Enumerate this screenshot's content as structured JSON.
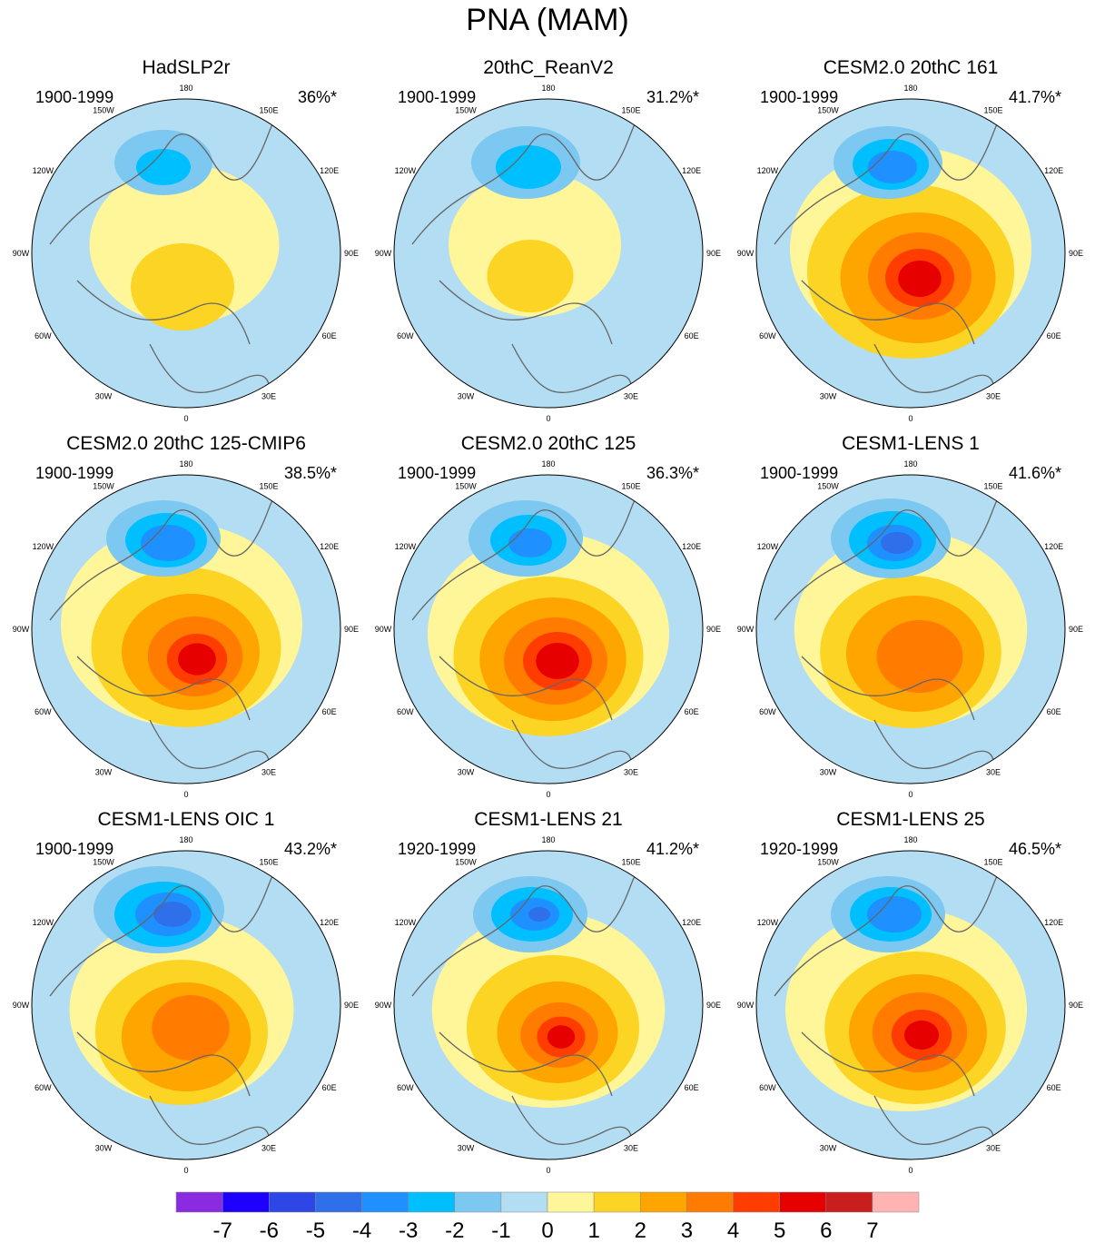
{
  "title": "PNA (MAM)",
  "panels": [
    {
      "title": "HadSLP2r",
      "period": "1900-1999",
      "pct": "36%*",
      "pos": [
        {
          "x": -2,
          "y": -55,
          "s": 1.1
        },
        {
          "x": -4,
          "y": -8,
          "s": 0.6
        }
      ],
      "neg": [
        {
          "x": -25,
          "y": -100,
          "s": 0.9
        },
        {
          "x": -25,
          "y": -95,
          "s": 0.5
        }
      ]
    },
    {
      "title": "20thC_ReanV2",
      "period": "1900-1999",
      "pct": "31.2%*",
      "pos": [
        {
          "x": -15,
          "y": -55,
          "s": 1.0
        },
        {
          "x": -20,
          "y": -20,
          "s": 0.5
        }
      ],
      "neg": [
        {
          "x": -25,
          "y": -100,
          "s": 1.0
        },
        {
          "x": -22,
          "y": -95,
          "s": 0.6
        }
      ]
    },
    {
      "title": "CESM2.0 20thC 161",
      "period": "1900-1999",
      "pct": "41.7%*",
      "pos": [
        {
          "x": 0,
          "y": -50,
          "s": 1.4
        },
        {
          "x": 0,
          "y": -25,
          "s": 1.2
        },
        {
          "x": 8,
          "y": -18,
          "s": 0.9
        },
        {
          "x": 10,
          "y": -20,
          "s": 0.6
        },
        {
          "x": 10,
          "y": -18,
          "s": 0.4
        },
        {
          "x": 10,
          "y": -17,
          "s": 0.25
        }
      ],
      "neg": [
        {
          "x": -25,
          "y": -100,
          "s": 1.0
        },
        {
          "x": -22,
          "y": -98,
          "s": 0.7
        },
        {
          "x": -20,
          "y": -95,
          "s": 0.45
        }
      ]
    },
    {
      "title": "CESM2.0 20thC 125-CMIP6",
      "period": "1900-1999",
      "pct": "38.5%*",
      "pos": [
        {
          "x": -5,
          "y": -50,
          "s": 1.4
        },
        {
          "x": 0,
          "y": -25,
          "s": 1.1
        },
        {
          "x": 5,
          "y": -20,
          "s": 0.8
        },
        {
          "x": 10,
          "y": -15,
          "s": 0.55
        },
        {
          "x": 12,
          "y": -12,
          "s": 0.35
        },
        {
          "x": 12,
          "y": -12,
          "s": 0.22
        }
      ],
      "neg": [
        {
          "x": -25,
          "y": -100,
          "s": 1.05
        },
        {
          "x": -22,
          "y": -98,
          "s": 0.75
        },
        {
          "x": -20,
          "y": -95,
          "s": 0.5
        }
      ]
    },
    {
      "title": "CESM2.0 20thC 125",
      "period": "1900-1999",
      "pct": "36.3%*",
      "pos": [
        {
          "x": 0,
          "y": -40,
          "s": 1.4
        },
        {
          "x": 0,
          "y": -15,
          "s": 1.1
        },
        {
          "x": 5,
          "y": -12,
          "s": 0.85
        },
        {
          "x": 8,
          "y": -10,
          "s": 0.6
        },
        {
          "x": 10,
          "y": -10,
          "s": 0.4
        },
        {
          "x": 10,
          "y": -10,
          "s": 0.25
        }
      ],
      "neg": [
        {
          "x": -25,
          "y": -100,
          "s": 1.05
        },
        {
          "x": -22,
          "y": -98,
          "s": 0.7
        },
        {
          "x": -20,
          "y": -95,
          "s": 0.4
        }
      ]
    },
    {
      "title": "CESM1-LENS 1",
      "period": "1900-1999",
      "pct": "41.6%*",
      "pos": [
        {
          "x": 0,
          "y": -45,
          "s": 1.35
        },
        {
          "x": 0,
          "y": -20,
          "s": 1.05
        },
        {
          "x": 5,
          "y": -18,
          "s": 0.8
        },
        {
          "x": 10,
          "y": -15,
          "s": 0.5
        }
      ],
      "neg": [
        {
          "x": -22,
          "y": -100,
          "s": 1.1
        },
        {
          "x": -20,
          "y": -98,
          "s": 0.8
        },
        {
          "x": -18,
          "y": -95,
          "s": 0.5
        },
        {
          "x": -15,
          "y": -95,
          "s": 0.3
        }
      ]
    },
    {
      "title": "CESM1-LENS OIC 1",
      "period": "1900-1999",
      "pct": "43.2%*",
      "pos": [
        {
          "x": -5,
          "y": -40,
          "s": 1.3
        },
        {
          "x": -5,
          "y": -15,
          "s": 1.0
        },
        {
          "x": 0,
          "y": -10,
          "s": 0.75
        },
        {
          "x": 5,
          "y": -20,
          "s": 0.45
        }
      ],
      "neg": [
        {
          "x": -30,
          "y": -105,
          "s": 1.2
        },
        {
          "x": -25,
          "y": -100,
          "s": 0.9
        },
        {
          "x": -20,
          "y": -100,
          "s": 0.6
        },
        {
          "x": -15,
          "y": -100,
          "s": 0.35
        }
      ]
    },
    {
      "title": "CESM1-LENS 21",
      "period": "1920-1999",
      "pct": "41.2%*",
      "pos": [
        {
          "x": 0,
          "y": -40,
          "s": 1.35
        },
        {
          "x": 5,
          "y": -20,
          "s": 1.0
        },
        {
          "x": 10,
          "y": -15,
          "s": 0.7
        },
        {
          "x": 12,
          "y": -12,
          "s": 0.45
        },
        {
          "x": 14,
          "y": -10,
          "s": 0.28
        },
        {
          "x": 14,
          "y": -10,
          "s": 0.16
        }
      ],
      "neg": [
        {
          "x": -20,
          "y": -100,
          "s": 1.05
        },
        {
          "x": -18,
          "y": -100,
          "s": 0.75
        },
        {
          "x": -15,
          "y": -100,
          "s": 0.45
        },
        {
          "x": -10,
          "y": -100,
          "s": 0.2
        }
      ]
    },
    {
      "title": "CESM1-LENS 25",
      "period": "1920-1999",
      "pct": "46.5%*",
      "pos": [
        {
          "x": -5,
          "y": -40,
          "s": 1.4
        },
        {
          "x": 5,
          "y": -20,
          "s": 1.05
        },
        {
          "x": 8,
          "y": -15,
          "s": 0.8
        },
        {
          "x": 10,
          "y": -15,
          "s": 0.55
        },
        {
          "x": 12,
          "y": -12,
          "s": 0.35
        },
        {
          "x": 12,
          "y": -12,
          "s": 0.2
        }
      ],
      "neg": [
        {
          "x": -25,
          "y": -100,
          "s": 1.05
        },
        {
          "x": -22,
          "y": -100,
          "s": 0.75
        },
        {
          "x": -18,
          "y": -100,
          "s": 0.5
        }
      ]
    }
  ],
  "lon_labels": [
    "180",
    "150E",
    "120E",
    "90E",
    "60E",
    "30E",
    "0",
    "30W",
    "60W",
    "90W",
    "120W",
    "150W"
  ],
  "colorbar": {
    "labels": [
      "-7",
      "-6",
      "-5",
      "-4",
      "-3",
      "-2",
      "-1",
      "0",
      "1",
      "2",
      "3",
      "4",
      "5",
      "6",
      "7"
    ],
    "colors": [
      "#8a2be2",
      "#1e00ff",
      "#2e46e6",
      "#2f6fe9",
      "#1e90ff",
      "#00bfff",
      "#7cc8f0",
      "#b3ddf2",
      "#fff599",
      "#fcd424",
      "#ffa500",
      "#ff7c00",
      "#ff3d00",
      "#e60000",
      "#c81e1e",
      "#ffb3b3"
    ]
  }
}
